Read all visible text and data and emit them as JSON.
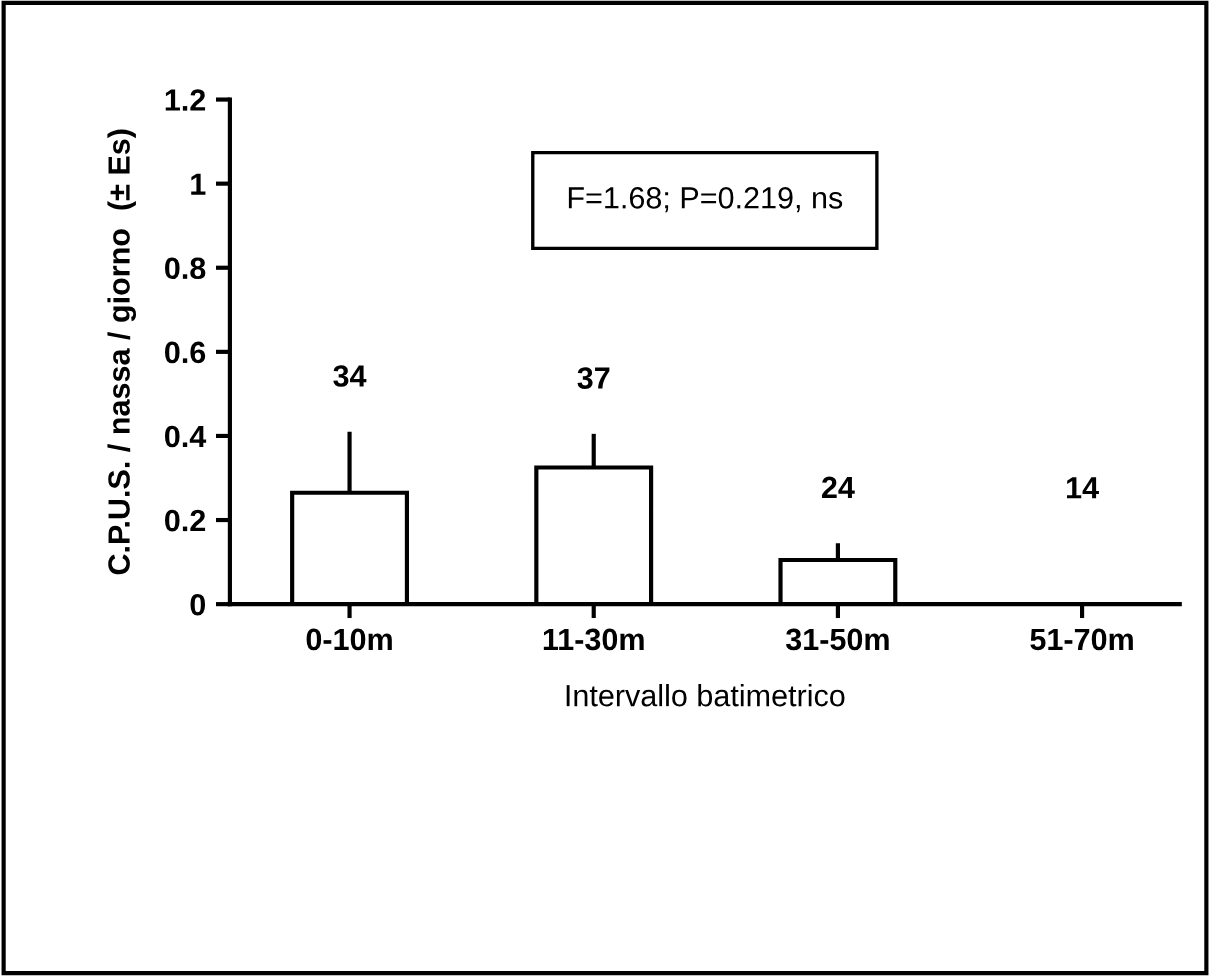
{
  "chart_data": {
    "type": "bar",
    "xlabel": "Intervallo batimetrico",
    "ylabel": "C.P.U.S. / nassa / giorno  (± Es)",
    "categories": [
      "0-10m",
      "11-30m",
      "31-50m",
      "51-70m"
    ],
    "values": [
      0.265,
      0.325,
      0.105,
      0
    ],
    "errors": [
      [
        0.265,
        0.41
      ],
      [
        0.325,
        0.405
      ],
      [
        0.105,
        0.145
      ],
      null
    ],
    "color": "#ffffff",
    "ylim": [
      0,
      1.2
    ],
    "yticks": [
      0,
      0.2,
      0.4,
      0.6,
      0.8,
      1,
      1.2
    ],
    "annotations": [
      "F=1.68; P=0.219, ns",
      "34",
      "37",
      "24",
      "14"
    ],
    "grid": false,
    "legend": false
  }
}
